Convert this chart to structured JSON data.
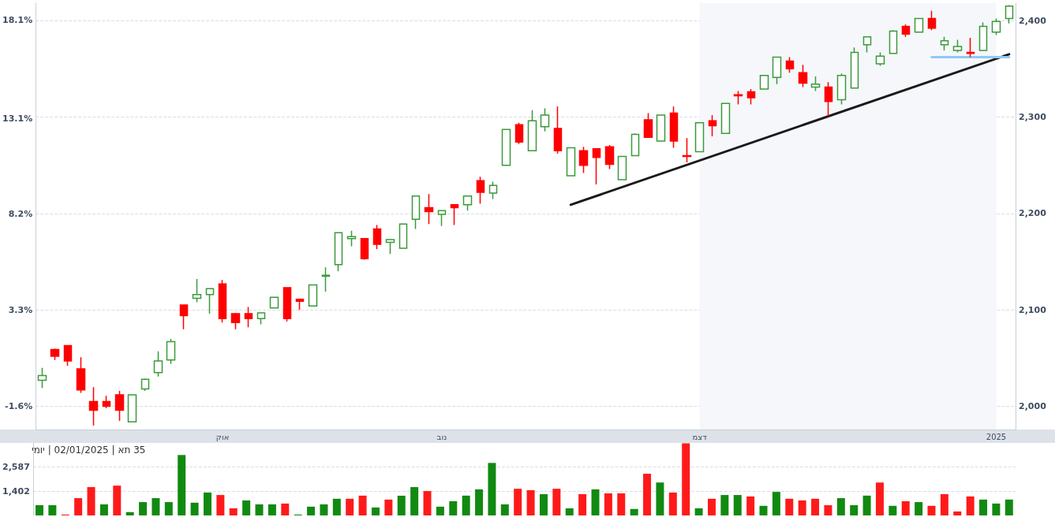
{
  "chart_data": [
    {
      "type": "candlestick",
      "categories": [
        null,
        null,
        null,
        null,
        null,
        null,
        null,
        null,
        null,
        null,
        null,
        null,
        null,
        null,
        "אוק",
        null,
        null,
        null,
        null,
        null,
        null,
        null,
        null,
        null,
        null,
        null,
        null,
        null,
        null,
        null,
        null,
        "נוב",
        null,
        null,
        null,
        null,
        null,
        null,
        null,
        null,
        null,
        null,
        null,
        null,
        null,
        null,
        null,
        null,
        null,
        null,
        null,
        "דצמ",
        null,
        null,
        null,
        null,
        null,
        null,
        null,
        null,
        null,
        null,
        null,
        null,
        null,
        null,
        null,
        null,
        null,
        null,
        null,
        null,
        null,
        null,
        "2025",
        null
      ],
      "ohlc": [
        [
          2027,
          2040,
          2019,
          2032
        ],
        [
          2059,
          2060,
          2048,
          2052
        ],
        [
          2063,
          2063,
          2042,
          2047
        ],
        [
          2039,
          2051,
          2014,
          2017
        ],
        [
          2005,
          2020,
          1980,
          1996
        ],
        [
          2005,
          2011,
          1998,
          2000
        ],
        [
          2012,
          2016,
          1985,
          1996
        ],
        [
          1984,
          2012,
          1984,
          2012
        ],
        [
          2018,
          2029,
          2016,
          2028
        ],
        [
          2035,
          2057,
          2031,
          2047
        ],
        [
          2048,
          2070,
          2044,
          2067
        ],
        [
          2105,
          2105,
          2080,
          2094
        ],
        [
          2112,
          2132,
          2108,
          2116
        ],
        [
          2116,
          2122,
          2096,
          2122
        ],
        [
          2127,
          2131,
          2087,
          2091
        ],
        [
          2096,
          2097,
          2080,
          2087
        ],
        [
          2096,
          2103,
          2082,
          2091
        ],
        [
          2091,
          2097,
          2085,
          2097
        ],
        [
          2102,
          2113,
          2102,
          2113
        ],
        [
          2123,
          2123,
          2088,
          2091
        ],
        [
          2111,
          2111,
          2100,
          2109
        ],
        [
          2104,
          2126,
          2104,
          2126
        ],
        [
          2135,
          2144,
          2119,
          2136
        ],
        [
          2147,
          2180,
          2140,
          2180
        ],
        [
          2174,
          2182,
          2166,
          2176
        ],
        [
          2174,
          2174,
          2152,
          2153
        ],
        [
          2184,
          2188,
          2163,
          2168
        ],
        [
          2170,
          2173,
          2158,
          2173
        ],
        [
          2164,
          2189,
          2164,
          2189
        ],
        [
          2194,
          2218,
          2184,
          2218
        ],
        [
          2206,
          2220,
          2189,
          2202
        ],
        [
          2199,
          2203,
          2187,
          2203
        ],
        [
          2209,
          2209,
          2188,
          2206
        ],
        [
          2209,
          2218,
          2203,
          2218
        ],
        [
          2234,
          2238,
          2210,
          2222
        ],
        [
          2221,
          2233,
          2215,
          2229
        ],
        [
          2250,
          2287,
          2250,
          2287
        ],
        [
          2292,
          2294,
          2272,
          2274
        ],
        [
          2265,
          2307,
          2265,
          2296
        ],
        [
          2290,
          2309,
          2285,
          2302
        ],
        [
          2288,
          2311,
          2262,
          2265
        ],
        [
          2239,
          2268,
          2239,
          2268
        ],
        [
          2265,
          2269,
          2242,
          2250
        ],
        [
          2267,
          2267,
          2230,
          2258
        ],
        [
          2269,
          2271,
          2246,
          2251
        ],
        [
          2235,
          2259,
          2235,
          2259
        ],
        [
          2260,
          2283,
          2260,
          2282
        ],
        [
          2297,
          2304,
          2279,
          2279
        ],
        [
          2275,
          2302,
          2275,
          2302
        ],
        [
          2304,
          2311,
          2268,
          2275
        ],
        [
          2260,
          2278,
          2253,
          2259
        ],
        [
          2264,
          2294,
          2264,
          2294
        ],
        [
          2296,
          2302,
          2280,
          2291
        ],
        [
          2283,
          2314,
          2283,
          2314
        ],
        [
          2323,
          2327,
          2313,
          2322
        ],
        [
          2326,
          2329,
          2313,
          2320
        ],
        [
          2329,
          2343,
          2329,
          2343
        ],
        [
          2341,
          2362,
          2334,
          2362
        ],
        [
          2358,
          2362,
          2346,
          2350
        ],
        [
          2346,
          2354,
          2331,
          2335
        ],
        [
          2331,
          2342,
          2327,
          2334
        ],
        [
          2331,
          2336,
          2301,
          2316
        ],
        [
          2318,
          2345,
          2313,
          2343
        ],
        [
          2330,
          2372,
          2330,
          2367
        ],
        [
          2375,
          2383,
          2367,
          2383
        ],
        [
          2355,
          2367,
          2353,
          2363
        ],
        [
          2366,
          2390,
          2366,
          2389
        ],
        [
          2394,
          2396,
          2383,
          2386
        ],
        [
          2388,
          2402,
          2388,
          2402
        ],
        [
          2402,
          2410,
          2390,
          2392
        ],
        [
          2375,
          2383,
          2369,
          2379
        ],
        [
          2369,
          2380,
          2367,
          2373
        ],
        [
          2367,
          2382,
          2362,
          2366
        ],
        [
          2369,
          2398,
          2369,
          2394
        ],
        [
          2388,
          2402,
          2385,
          2399
        ],
        [
          2402,
          2416,
          2397,
          2415
        ]
      ],
      "colors": [
        "#3a9a3a",
        "#ff0000",
        "#ff0000",
        "#ff0000",
        "#ff0000",
        "#ff0000",
        "#ff0000",
        "#3a9a3a",
        "#3a9a3a",
        "#3a9a3a",
        "#3a9a3a",
        "#ff0000",
        "#3a9a3a",
        "#3a9a3a",
        "#ff0000",
        "#ff0000",
        "#ff0000",
        "#3a9a3a",
        "#3a9a3a",
        "#ff0000",
        "#ff0000",
        "#3a9a3a",
        "#3a9a3a",
        "#3a9a3a",
        "#3a9a3a",
        "#ff0000",
        "#ff0000",
        "#3a9a3a",
        "#3a9a3a",
        "#3a9a3a",
        "#ff0000",
        "#3a9a3a",
        "#ff0000",
        "#3a9a3a",
        "#ff0000",
        "#3a9a3a",
        "#3a9a3a",
        "#ff0000",
        "#3a9a3a",
        "#3a9a3a",
        "#ff0000",
        "#3a9a3a",
        "#ff0000",
        "#ff0000",
        "#ff0000",
        "#3a9a3a",
        "#3a9a3a",
        "#ff0000",
        "#3a9a3a",
        "#ff0000",
        "#ff0000",
        "#3a9a3a",
        "#ff0000",
        "#3a9a3a",
        "#ff0000",
        "#ff0000",
        "#3a9a3a",
        "#3a9a3a",
        "#ff0000",
        "#ff0000",
        "#3a9a3a",
        "#ff0000",
        "#3a9a3a",
        "#3a9a3a",
        "#3a9a3a",
        "#3a9a3a",
        "#3a9a3a",
        "#ff0000",
        "#3a9a3a",
        "#ff0000",
        "#3a9a3a",
        "#3a9a3a",
        "#ff0000",
        "#3a9a3a",
        "#3a9a3a",
        "#3a9a3a"
      ],
      "series": [
        {
          "type": "line",
          "color": "#1a1a1a",
          "values": [
            null,
            null,
            null,
            null,
            null,
            null,
            null,
            null,
            null,
            null,
            null,
            null,
            null,
            null,
            null,
            null,
            null,
            null,
            null,
            null,
            null,
            null,
            null,
            null,
            null,
            null,
            null,
            null,
            null,
            null,
            null,
            null,
            null,
            null,
            null,
            null,
            null,
            null,
            null,
            null,
            null,
            2209,
            null,
            null,
            null,
            null,
            null,
            null,
            null,
            null,
            null,
            null,
            null,
            null,
            null,
            null,
            null,
            null,
            null,
            null,
            null,
            null,
            null,
            null,
            null,
            null,
            null,
            null,
            null,
            null,
            null,
            null,
            null,
            null,
            null,
            2365
          ]
        },
        {
          "type": "line",
          "color": "#90c8f8",
          "values": [
            null,
            null,
            null,
            null,
            null,
            null,
            null,
            null,
            null,
            null,
            null,
            null,
            null,
            null,
            null,
            null,
            null,
            null,
            null,
            null,
            null,
            null,
            null,
            null,
            null,
            null,
            null,
            null,
            null,
            null,
            null,
            null,
            null,
            null,
            null,
            null,
            null,
            null,
            null,
            null,
            null,
            null,
            null,
            null,
            null,
            null,
            null,
            null,
            null,
            null,
            null,
            null,
            null,
            null,
            null,
            null,
            null,
            null,
            null,
            null,
            null,
            null,
            null,
            null,
            null,
            null,
            null,
            null,
            null,
            2362,
            null,
            null,
            null,
            null,
            null,
            2362
          ]
        }
      ],
      "ylim": [
        1976,
        2418
      ],
      "yticks": [
        {
          "value": 2000,
          "label": "2,000"
        },
        {
          "value": 2100,
          "label": "2,100"
        },
        {
          "value": 2200,
          "label": "2,200"
        },
        {
          "value": 2300,
          "label": "2,300"
        },
        {
          "value": 2400,
          "label": "2,400"
        }
      ],
      "y2lim": [
        -2.78,
        18.97
      ],
      "y2ticks": [
        {
          "value": -1.6,
          "label": "-1.6%"
        },
        {
          "value": 3.3,
          "label": "3.3%"
        },
        {
          "value": 8.2,
          "label": "8.2%"
        },
        {
          "value": 13.1,
          "label": "13.1%"
        },
        {
          "value": 18.1,
          "label": "18.1%"
        }
      ],
      "bands": [
        {
          "axis": "x",
          "from": "דצמ",
          "to": "2025",
          "color": "#f5f7fa"
        }
      ],
      "grid": "y",
      "marker": "none",
      "line_style": "solid"
    },
    {
      "type": "bar",
      "title": "יומי | 02/01/2025 | תא 35",
      "categories": [
        null,
        null,
        null,
        null,
        null,
        null,
        null,
        null,
        null,
        null,
        null,
        null,
        null,
        null,
        null,
        null,
        null,
        null,
        null,
        null,
        null,
        null,
        null,
        null,
        null,
        null,
        null,
        null,
        null,
        null,
        null,
        null,
        null,
        null,
        null,
        null,
        null,
        null,
        null,
        null,
        null,
        null,
        null,
        null,
        null,
        null,
        null,
        null,
        null,
        null,
        null,
        null,
        null,
        null,
        null,
        null,
        null,
        null,
        null,
        null,
        null,
        null,
        null,
        null,
        null,
        null,
        null,
        null,
        null,
        null,
        null,
        null,
        null,
        null,
        null,
        null
      ],
      "values": [
        740,
        740,
        290,
        1080,
        1610,
        780,
        1680,
        410,
        890,
        1080,
        890,
        3150,
        860,
        1350,
        1230,
        590,
        970,
        780,
        780,
        820,
        290,
        670,
        780,
        1050,
        1050,
        1200,
        630,
        1010,
        1200,
        1610,
        1420,
        670,
        930,
        1200,
        1500,
        2770,
        780,
        1530,
        1460,
        1270,
        1530,
        590,
        1270,
        1500,
        1310,
        1310,
        560,
        2250,
        1830,
        1350,
        3710,
        590,
        1050,
        1230,
        1230,
        1160,
        710,
        1380,
        1050,
        970,
        1050,
        740,
        1080,
        740,
        1200,
        1830,
        710,
        930,
        890,
        710,
        1270,
        440,
        1160,
        1010,
        820,
        1010
      ],
      "colors": [
        "#118a11",
        "#118a11",
        "#ff1a1a",
        "#ff1a1a",
        "#ff1a1a",
        "#118a11",
        "#ff1a1a",
        "#118a11",
        "#118a11",
        "#118a11",
        "#118a11",
        "#118a11",
        "#118a11",
        "#118a11",
        "#ff1a1a",
        "#ff1a1a",
        "#118a11",
        "#118a11",
        "#118a11",
        "#ff1a1a",
        "#118a11",
        "#118a11",
        "#118a11",
        "#118a11",
        "#ff1a1a",
        "#ff1a1a",
        "#118a11",
        "#ff1a1a",
        "#118a11",
        "#118a11",
        "#ff1a1a",
        "#118a11",
        "#118a11",
        "#118a11",
        "#118a11",
        "#118a11",
        "#118a11",
        "#ff1a1a",
        "#ff1a1a",
        "#118a11",
        "#ff1a1a",
        "#118a11",
        "#ff1a1a",
        "#118a11",
        "#ff1a1a",
        "#ff1a1a",
        "#118a11",
        "#ff1a1a",
        "#118a11",
        "#ff1a1a",
        "#ff1a1a",
        "#118a11",
        "#ff1a1a",
        "#118a11",
        "#118a11",
        "#ff1a1a",
        "#118a11",
        "#118a11",
        "#ff1a1a",
        "#ff1a1a",
        "#ff1a1a",
        "#ff1a1a",
        "#118a11",
        "#118a11",
        "#118a11",
        "#ff1a1a",
        "#118a11",
        "#ff1a1a",
        "#118a11",
        "#ff1a1a",
        "#ff1a1a",
        "#ff1a1a",
        "#ff1a1a",
        "#118a11",
        "#118a11",
        "#118a11"
      ],
      "ylim": [
        250,
        3730
      ],
      "yticks": [
        {
          "value": 1402,
          "label": "1,402"
        },
        {
          "value": 2587,
          "label": "2,587"
        }
      ],
      "grid": "y",
      "tick_labels": "y"
    }
  ]
}
